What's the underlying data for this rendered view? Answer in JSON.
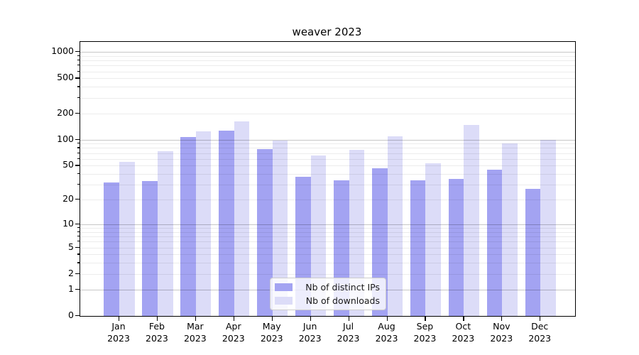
{
  "chart_data": {
    "type": "bar",
    "title": "weaver 2023",
    "categories": [
      "Jan 2023",
      "Feb 2023",
      "Mar 2023",
      "Apr 2023",
      "May 2023",
      "Jun 2023",
      "Jul 2023",
      "Aug 2023",
      "Sep 2023",
      "Oct 2023",
      "Nov 2023",
      "Dec 2023"
    ],
    "series": [
      {
        "name": "Nb of distinct IPs",
        "color": "#a3a3f2",
        "values": [
          32,
          33,
          107,
          127,
          77,
          37,
          34,
          47,
          34,
          35,
          45,
          27
        ]
      },
      {
        "name": "Nb of downloads",
        "color": "#dcdcf8",
        "values": [
          55,
          74,
          125,
          161,
          97,
          65,
          76,
          108,
          53,
          148,
          90,
          99
        ]
      }
    ],
    "yscale": "log1p",
    "ylim": [
      0,
      1300
    ],
    "y_ticks": [
      0,
      1,
      2,
      5,
      10,
      20,
      50,
      100,
      200,
      500,
      1000
    ],
    "grid": true,
    "grid_over_bars": true,
    "legend_position": "lower center",
    "xlabel": "",
    "ylabel": ""
  },
  "colors": {
    "major_grid": "rgba(0,0,0,0.22)",
    "minor_grid": "rgba(0,0,0,0.075)",
    "spine": "#000000",
    "background": "#ffffff"
  }
}
